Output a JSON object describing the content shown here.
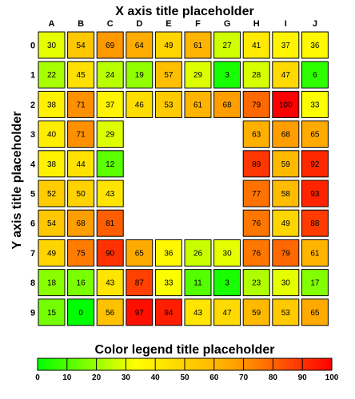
{
  "chart_data": {
    "type": "heatmap",
    "x_title": "X axis title placeholder",
    "y_title": "Y axis title placeholder",
    "legend_title": "Color legend title placeholder",
    "columns": [
      "A",
      "B",
      "C",
      "D",
      "E",
      "F",
      "G",
      "H",
      "I",
      "J"
    ],
    "rows": [
      "0",
      "1",
      "2",
      "3",
      "4",
      "5",
      "6",
      "7",
      "8",
      "9"
    ],
    "values": [
      [
        30,
        54,
        69,
        64,
        49,
        61,
        27,
        41,
        37,
        36
      ],
      [
        22,
        45,
        24,
        19,
        57,
        29,
        3,
        28,
        47,
        6
      ],
      [
        38,
        71,
        37,
        46,
        53,
        61,
        68,
        79,
        100,
        33
      ],
      [
        40,
        71,
        29,
        null,
        null,
        null,
        null,
        63,
        68,
        65
      ],
      [
        38,
        44,
        12,
        null,
        null,
        null,
        null,
        89,
        59,
        92
      ],
      [
        52,
        50,
        43,
        null,
        null,
        null,
        null,
        77,
        58,
        93
      ],
      [
        54,
        68,
        81,
        null,
        null,
        null,
        null,
        76,
        49,
        88
      ],
      [
        49,
        75,
        90,
        65,
        36,
        26,
        30,
        76,
        79,
        61
      ],
      [
        18,
        16,
        43,
        87,
        33,
        11,
        3,
        23,
        30,
        17
      ],
      [
        15,
        0,
        56,
        97,
        94,
        43,
        47,
        59,
        53,
        65
      ]
    ],
    "color_range": [
      0,
      100
    ],
    "color_stops": [
      "#00ff00",
      "#ffff00",
      "#ffa500",
      "#ff0000"
    ],
    "legend_ticks": [
      0,
      10,
      20,
      30,
      40,
      50,
      60,
      70,
      80,
      90,
      100
    ],
    "legend_placement": "bottom"
  }
}
